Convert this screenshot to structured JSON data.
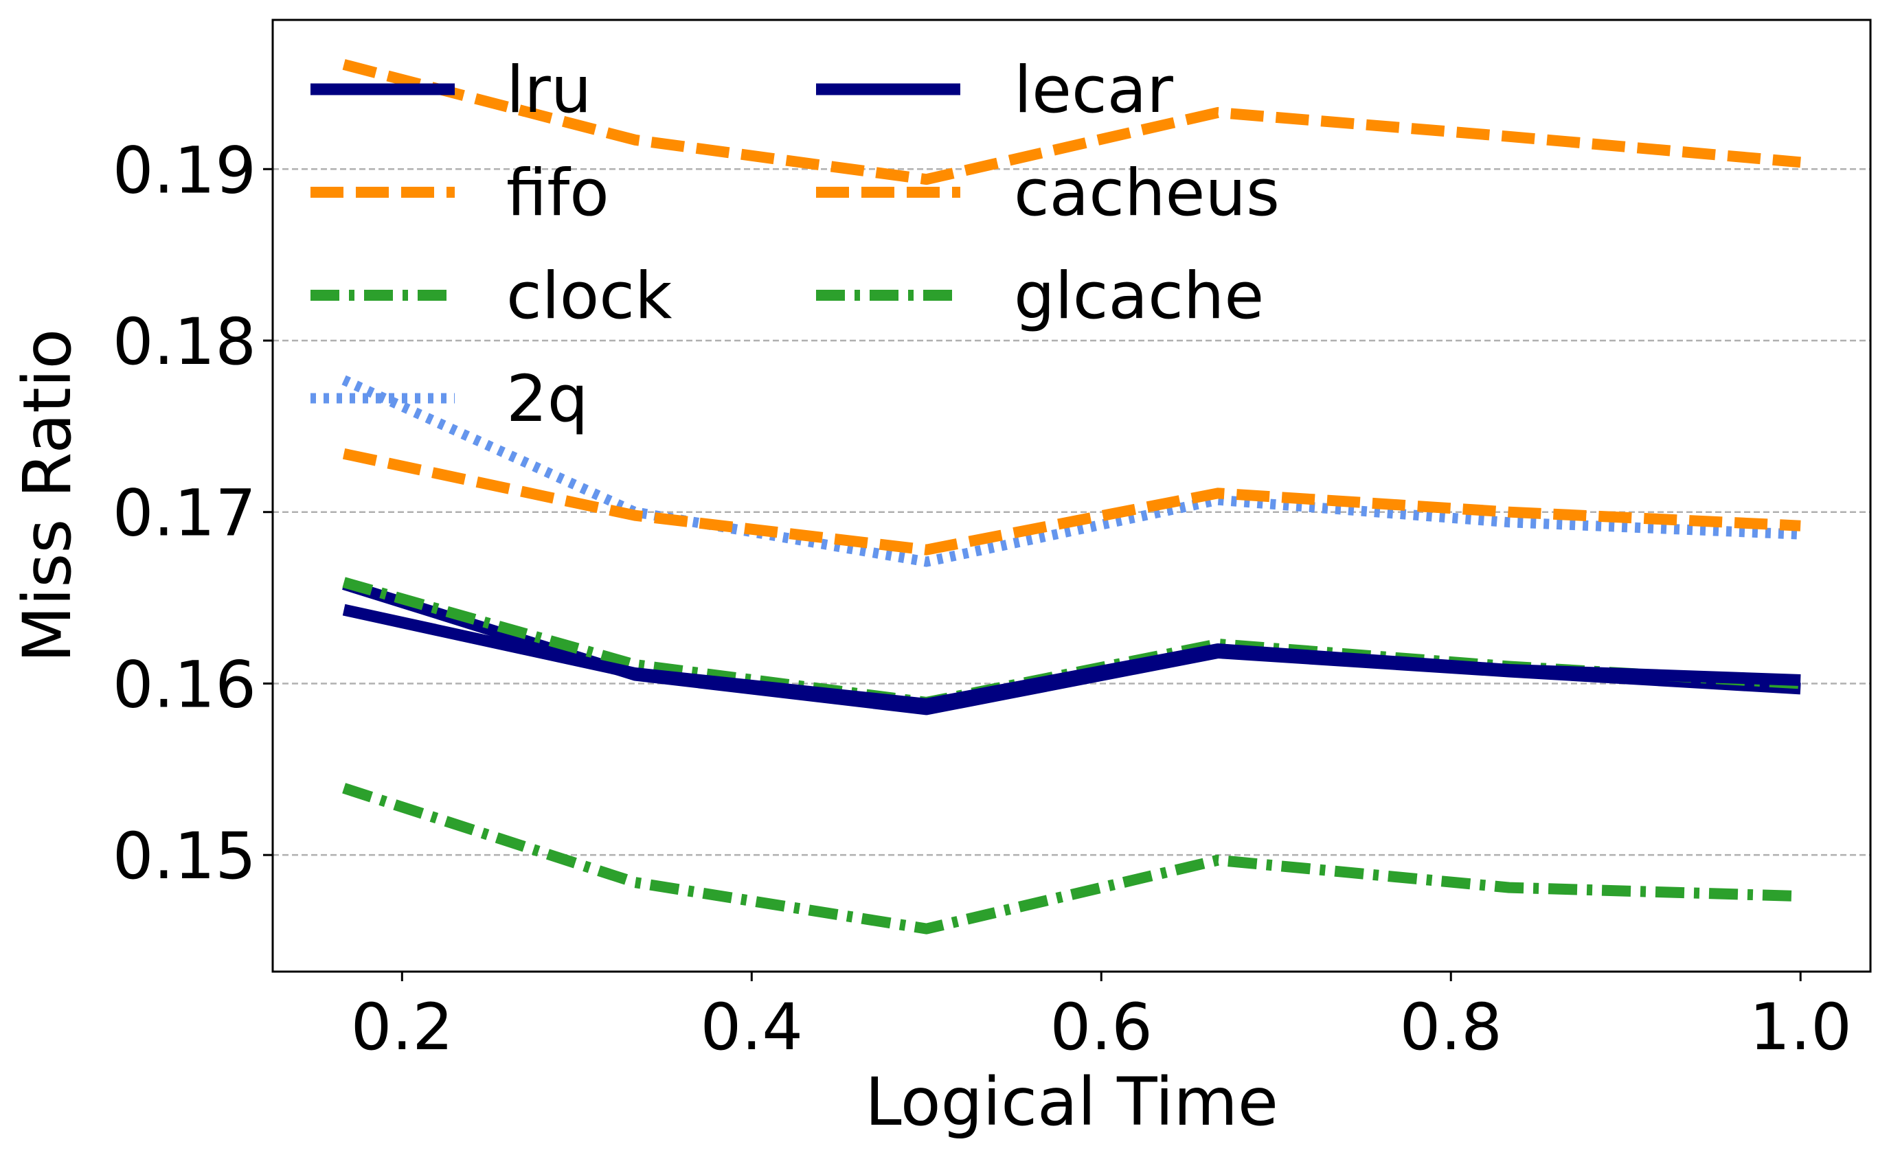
{
  "chart_data": {
    "type": "line",
    "xlabel": "Logical Time",
    "ylabel": "Miss Ratio",
    "xlim": [
      0.126,
      1.04
    ],
    "ylim": [
      0.1432,
      0.1987
    ],
    "xticks": [
      0.2,
      0.4,
      0.6,
      0.8,
      1.0
    ],
    "xtick_labels": [
      "0.2",
      "0.4",
      "0.6",
      "0.8",
      "1.0"
    ],
    "yticks": [
      0.15,
      0.16,
      0.17,
      0.18,
      0.19
    ],
    "ytick_labels": [
      "0.15",
      "0.16",
      "0.17",
      "0.18",
      "0.19"
    ],
    "grid": "horizontal dashed",
    "legend_placement": "top-left, two columns",
    "x": [
      0.1667,
      0.3333,
      0.5,
      0.6667,
      0.8333,
      1.0
    ],
    "series": [
      {
        "name": "lru",
        "color": "#000080",
        "dash": "solid",
        "values": [
          0.1658,
          0.1605,
          0.1585,
          0.1618,
          0.1607,
          0.1597
        ]
      },
      {
        "name": "fifo",
        "color": "#ff8c00",
        "dash": "dashed",
        "values": [
          0.1961,
          0.1917,
          0.1894,
          0.1933,
          0.1919,
          0.1904
        ]
      },
      {
        "name": "clock",
        "color": "#2ca02c",
        "dash": "dashdot",
        "values": [
          0.1659,
          0.1611,
          0.1589,
          0.1623,
          0.161,
          0.16
        ]
      },
      {
        "name": "2q",
        "color": "#6495ed",
        "dash": "dotted",
        "values": [
          0.1777,
          0.17,
          0.1671,
          0.1707,
          0.1694,
          0.1687
        ]
      },
      {
        "name": "lecar",
        "color": "#000080",
        "dash": "solid",
        "values": [
          0.1643,
          0.1606,
          0.1588,
          0.162,
          0.1608,
          0.1602
        ]
      },
      {
        "name": "cacheus",
        "color": "#ff8c00",
        "dash": "dashed",
        "values": [
          0.1734,
          0.1698,
          0.1678,
          0.1711,
          0.17,
          0.1692
        ]
      },
      {
        "name": "glcache",
        "color": "#2ca02c",
        "dash": "dashdot",
        "values": [
          0.1539,
          0.1484,
          0.1457,
          0.1497,
          0.1481,
          0.1476
        ]
      }
    ]
  }
}
